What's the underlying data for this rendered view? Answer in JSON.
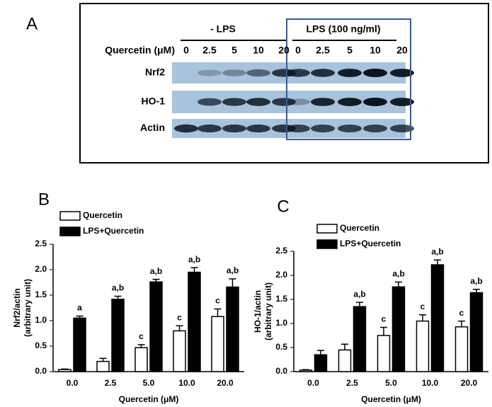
{
  "figure": {
    "panel_a": "A",
    "panel_b": "B",
    "panel_c": "C",
    "blot": {
      "minus_lps": "- LPS",
      "plus_lps": "LPS (100 ng/ml)",
      "dose_label": "Quercetin (μM)",
      "lanes": [
        "0",
        "2.5",
        "5",
        "10",
        "20",
        "0",
        "2.5",
        "5",
        "10",
        "20"
      ],
      "rows": [
        "Nrf2",
        "HO-1",
        "Actin"
      ]
    }
  },
  "chart_data": [
    {
      "type": "bar",
      "ylabel": [
        "Nrf2/actin",
        "(arbitrary unit)"
      ],
      "xlabel": "Quercetin (μM)",
      "categories": [
        "0.0",
        "2.5",
        "5.0",
        "10.0",
        "20.0"
      ],
      "ylim": [
        0,
        2.5
      ],
      "yticks": [
        {
          "value": 0,
          "label": "0.0"
        },
        0.5,
        {
          "value": 1,
          "label": "1.0"
        },
        1.5,
        {
          "value": 2,
          "label": "2.0"
        },
        2.5
      ],
      "series": [
        {
          "name": "Quercetin",
          "color": "#ffffff",
          "values": [
            0.04,
            0.2,
            0.47,
            0.8,
            1.08
          ],
          "errors": [
            0.01,
            0.06,
            0.06,
            0.1,
            0.15
          ],
          "annotations": [
            null,
            null,
            "c",
            "c",
            "c"
          ]
        },
        {
          "name": "LPS+Quercetin",
          "color": "#000000",
          "values": [
            1.05,
            1.42,
            1.76,
            1.95,
            1.66
          ],
          "errors": [
            0.04,
            0.06,
            0.05,
            0.09,
            0.16
          ],
          "annotations": [
            "a",
            "a,b",
            "a,b",
            "a,b",
            "a,b"
          ]
        }
      ]
    },
    {
      "type": "bar",
      "ylabel": [
        "HO-1/actin",
        "(arbitrary unit)"
      ],
      "xlabel": "Quercetin (μM)",
      "categories": [
        "0.0",
        "2.5",
        "5.0",
        "10.0",
        "20.0"
      ],
      "ylim": [
        0,
        2.5
      ],
      "yticks": [
        {
          "value": 0,
          "label": "0.0"
        },
        0.5,
        {
          "value": 1,
          "label": "1.0"
        },
        1.5,
        {
          "value": 2,
          "label": "2.0"
        },
        2.5
      ],
      "series": [
        {
          "name": "Quercetin",
          "color": "#ffffff",
          "values": [
            0.03,
            0.45,
            0.75,
            1.05,
            0.93
          ],
          "errors": [
            0.01,
            0.12,
            0.17,
            0.13,
            0.12
          ],
          "annotations": [
            null,
            null,
            "c",
            "c",
            "c"
          ]
        },
        {
          "name": "LPS+Quercetin",
          "color": "#000000",
          "values": [
            0.35,
            1.35,
            1.76,
            2.22,
            1.64
          ],
          "errors": [
            0.09,
            0.09,
            0.1,
            0.1,
            0.07
          ],
          "annotations": [
            null,
            "a,b",
            "a,b",
            "a,b",
            "a,b"
          ]
        }
      ]
    }
  ]
}
